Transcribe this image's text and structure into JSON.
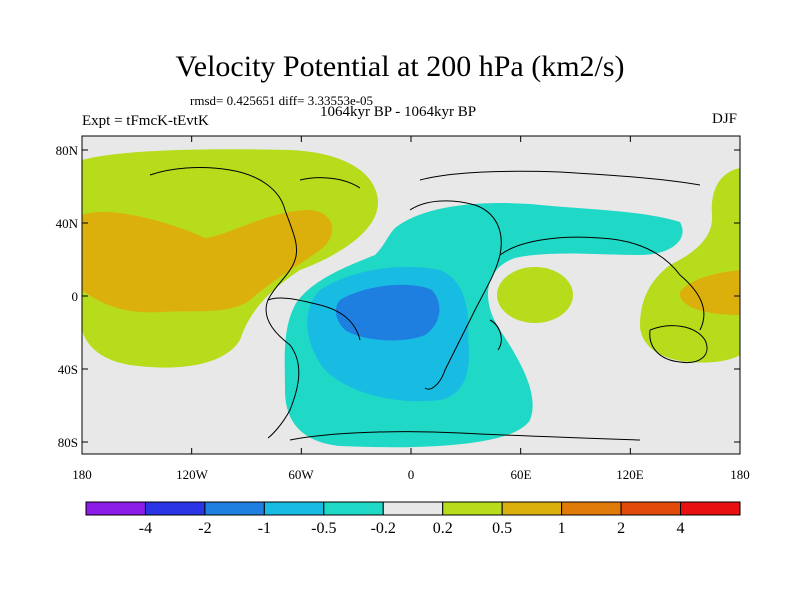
{
  "title": "Velocity Potential at 200 hPa (km2/s)",
  "stats": "rmsd= 0.425651 diff= 3.33553e-05",
  "period": "1064kyr BP - 1064kyr BP",
  "experiment": "Expt = tFmcK-tEvtK",
  "season": "DJF",
  "axes": {
    "lat_labels": [
      "80N",
      "40N",
      "0",
      "40S",
      "80S"
    ],
    "lon_labels": [
      "180",
      "120W",
      "60W",
      "0",
      "60E",
      "120E",
      "180"
    ]
  },
  "colorbar": {
    "colors": [
      "#8c1ce8",
      "#2a34e4",
      "#1e7fe0",
      "#18bce2",
      "#20d8c6",
      "#e8e8e8",
      "#b6dc1c",
      "#dcb00c",
      "#e07a08",
      "#e24a0a",
      "#e81010"
    ],
    "labels": [
      "-4",
      "-2",
      "-1",
      "-0.5",
      "-0.2",
      "0.2",
      "0.5",
      "1",
      "2",
      "4"
    ]
  },
  "legend_fill": {
    "positive_weak": "#b6dc1c",
    "positive_mid": "#dcb00c",
    "negative_weak": "#20d8c6",
    "negative_mid": "#18bce2",
    "negative_strong": "#1e7fe0",
    "neutral": "#e8e8e8"
  }
}
